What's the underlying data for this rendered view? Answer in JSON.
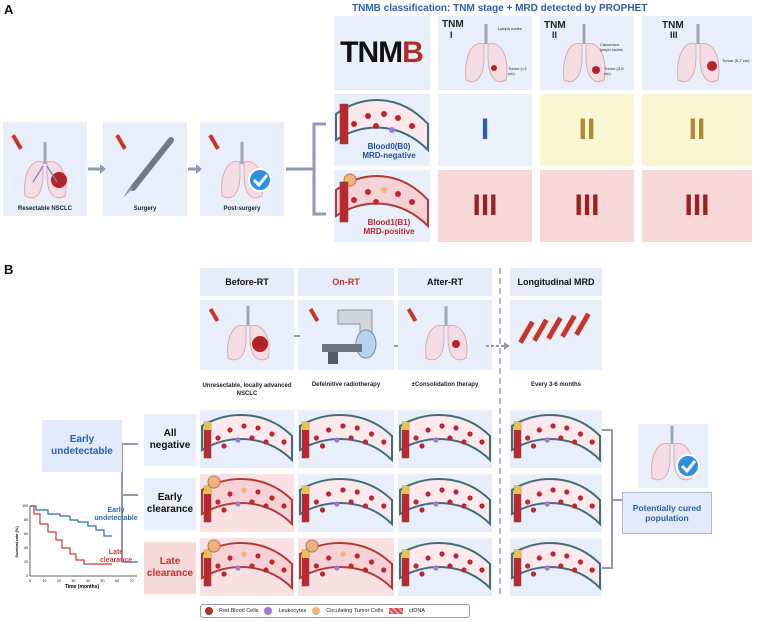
{
  "panel_a": {
    "letter": "A",
    "heading": "TNMB classification: TNM stage + MRD detected by PROPHET",
    "steps": [
      "Resectable NSCLC",
      "Surgery",
      "Post-surgery"
    ],
    "logo": {
      "prefix": "TNM",
      "suffix": "B"
    },
    "tnm_columns": [
      {
        "label": "TNM",
        "stage": "I",
        "notes": [
          "Lymph nodes",
          "Tumor (<3 cm)"
        ]
      },
      {
        "label": "TNM",
        "stage": "II",
        "notes": [
          "Cancerous lymph nodes",
          "Tumor (3-5 cm)"
        ]
      },
      {
        "label": "TNM",
        "stage": "III",
        "notes": [
          "Tumor (5-7 cm)"
        ]
      }
    ],
    "blood_rows": [
      {
        "name": "Blood0(B0)",
        "status": "MRD-negative",
        "grades": [
          "I",
          "II",
          "II"
        ]
      },
      {
        "name": "Blood1(B1)",
        "status": "MRD-positive",
        "grades": [
          "III",
          "III",
          "III"
        ]
      }
    ]
  },
  "panel_b": {
    "letter": "B",
    "stage_headers": [
      "Before-RT",
      "On-RT",
      "After-RT",
      "Longitudinal MRD"
    ],
    "stage_captions": [
      "Unresectable, locally advanced NSCLC",
      "Defeinitive radiotherapy",
      "±Consolidation therapy",
      "Every 3-6 months"
    ],
    "early_undetectable": "Early undetectable",
    "groups": [
      "All negative",
      "Early clearance",
      "Late clearance"
    ],
    "cured": "Potentially cured population",
    "km": {
      "ylabel": "Survival rate (%)",
      "xlabel": "Time (months)",
      "xticks": [
        "0",
        "10",
        "20",
        "30",
        "40",
        "50",
        "60",
        "70"
      ],
      "yticks": [
        "0",
        "20",
        "40",
        "60",
        "80",
        "100"
      ],
      "series": [
        {
          "name": "Early undetectable",
          "color": "#2b6cb8"
        },
        {
          "name": "Late clearance",
          "color": "#d23a3a"
        }
      ]
    },
    "legend": [
      "Red Blood Cells",
      "Leukocytes",
      "Circulating Tumor Cells",
      "ctDNA"
    ]
  },
  "colors": {
    "accent_blue": "#2b5fae",
    "red": "#b22a2a",
    "box": "#e9eefb",
    "yellow": "#fbf6d4",
    "pink": "#f6d8d8"
  }
}
